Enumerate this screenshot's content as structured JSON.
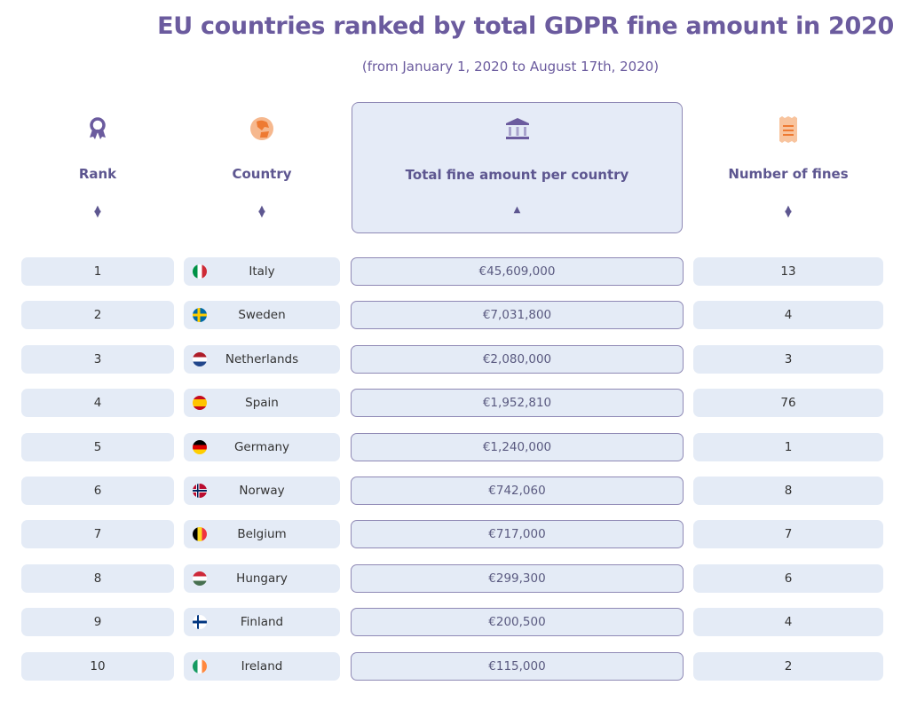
{
  "title": "EU countries ranked by total GDPR fine amount in 2020",
  "subtitle": "(from January 1, 2020 to August 17th, 2020)",
  "columns": [
    {
      "label": "Rank",
      "icon": "award-ribbon-icon",
      "sort": "both"
    },
    {
      "label": "Country",
      "icon": "globe-icon",
      "sort": "both"
    },
    {
      "label": "Total fine amount per country",
      "icon": "bank-building-icon",
      "sort": "ascending",
      "active": true
    },
    {
      "label": "Number of fines",
      "icon": "receipt-icon",
      "sort": "both"
    }
  ],
  "colors": {
    "accent": "#6b5b9e",
    "row_bg": "#e4ebf6",
    "orange": "#f0873a"
  },
  "rows": [
    {
      "rank": "1",
      "country": "Italy",
      "flag": "italy-flag-icon",
      "amount": "€45,609,000",
      "fines": "13"
    },
    {
      "rank": "2",
      "country": "Sweden",
      "flag": "sweden-flag-icon",
      "amount": "€7,031,800",
      "fines": "4"
    },
    {
      "rank": "3",
      "country": "Netherlands",
      "flag": "netherlands-flag-icon",
      "amount": "€2,080,000",
      "fines": "3"
    },
    {
      "rank": "4",
      "country": "Spain",
      "flag": "spain-flag-icon",
      "amount": "€1,952,810",
      "fines": "76"
    },
    {
      "rank": "5",
      "country": "Germany",
      "flag": "germany-flag-icon",
      "amount": "€1,240,000",
      "fines": "1"
    },
    {
      "rank": "6",
      "country": "Norway",
      "flag": "norway-flag-icon",
      "amount": "€742,060",
      "fines": "8"
    },
    {
      "rank": "7",
      "country": "Belgium",
      "flag": "belgium-flag-icon",
      "amount": "€717,000",
      "fines": "7"
    },
    {
      "rank": "8",
      "country": "Hungary",
      "flag": "hungary-flag-icon",
      "amount": "€299,300",
      "fines": "6"
    },
    {
      "rank": "9",
      "country": "Finland",
      "flag": "finland-flag-icon",
      "amount": "€200,500",
      "fines": "4"
    },
    {
      "rank": "10",
      "country": "Ireland",
      "flag": "ireland-flag-icon",
      "amount": "€115,000",
      "fines": "2"
    }
  ]
}
